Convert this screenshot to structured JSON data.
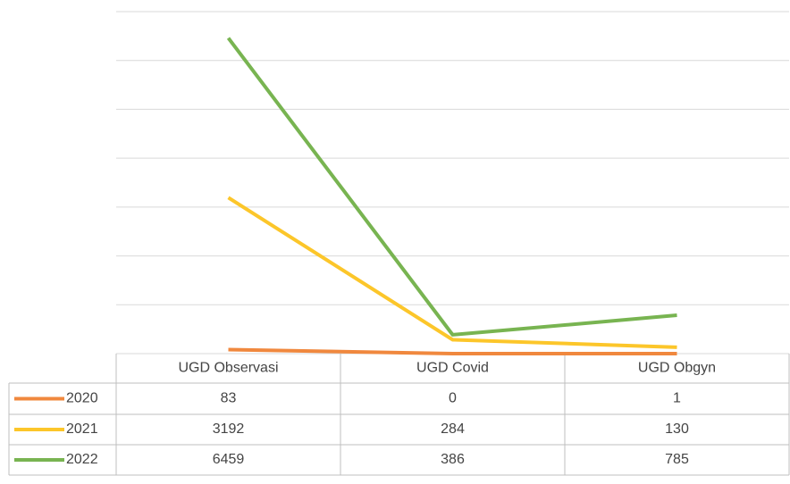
{
  "chart_data": {
    "type": "line",
    "categories": [
      "UGD Observasi",
      "UGD Covid",
      "UGD Obgyn"
    ],
    "series": [
      {
        "name": "2020",
        "color": "#f0883e",
        "values": [
          83,
          0,
          1
        ]
      },
      {
        "name": "2021",
        "color": "#fcc62a",
        "values": [
          3192,
          284,
          130
        ]
      },
      {
        "name": "2022",
        "color": "#78b451",
        "values": [
          6459,
          386,
          785
        ]
      }
    ],
    "ylim": [
      0,
      7000
    ],
    "yticks": [
      0,
      1000,
      2000,
      3000,
      4000,
      5000,
      6000,
      7000
    ],
    "grid": true
  }
}
